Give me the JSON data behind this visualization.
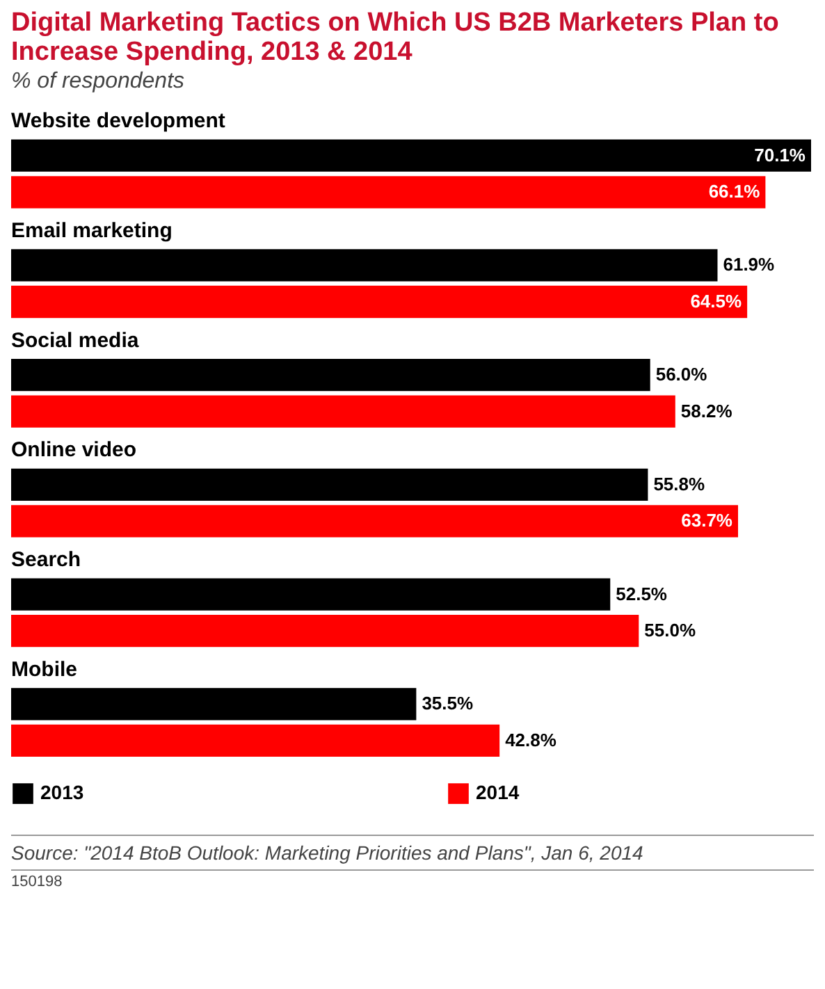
{
  "chart_data": {
    "type": "bar",
    "orientation": "horizontal",
    "title": "Digital Marketing Tactics on Which US B2B Marketers Plan to Increase Spending, 2013 & 2014",
    "subtitle": "% of respondents",
    "categories": [
      "Website development",
      "Email marketing",
      "Social media",
      "Online video",
      "Search",
      "Mobile"
    ],
    "series": [
      {
        "name": "2013",
        "color": "#000000",
        "values": [
          70.1,
          61.9,
          56.0,
          55.8,
          52.5,
          35.5
        ],
        "value_labels": [
          "70.1%",
          "61.9%",
          "56.0%",
          "55.8%",
          "52.5%",
          "35.5%"
        ]
      },
      {
        "name": "2014",
        "color": "#ff0000",
        "values": [
          66.1,
          64.5,
          58.2,
          63.7,
          55.0,
          42.8
        ],
        "value_labels": [
          "66.1%",
          "64.5%",
          "58.2%",
          "63.7%",
          "55.0%",
          "42.8%"
        ]
      }
    ],
    "legend": "bottom left",
    "annotations": [
      "Source: \"2014 BtoB Outlook: Marketing Priorities and Plans\", Jan 6, 2014",
      "150198"
    ]
  }
}
